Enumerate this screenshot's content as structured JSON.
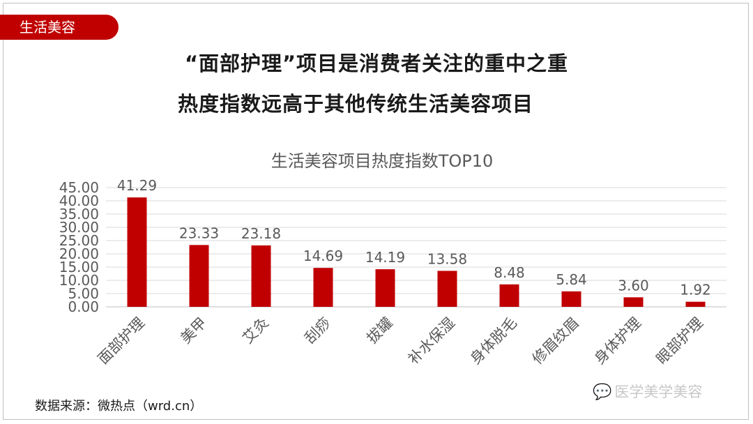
{
  "tag": {
    "label": "生活美容"
  },
  "headline": {
    "line1": "“面部护理”项目是消费者关注的重中之重",
    "line2": "热度指数远高于其他传统生活美容项目"
  },
  "source": {
    "text": "数据来源：微热点（wrd.cn）"
  },
  "watermark": {
    "text": "医学美学美容",
    "icon": "wechat-icon"
  },
  "colors": {
    "bar": "#c00000",
    "tag": "#c00000",
    "grid": "#d9d9d9",
    "text": "#595959"
  },
  "chart_data": {
    "type": "bar",
    "title": "生活美容项目热度指数TOP10",
    "categories": [
      "面部护理",
      "美甲",
      "艾灸",
      "刮痧",
      "拔罐",
      "补水保湿",
      "身体脱毛",
      "修眉纹眉",
      "身体护理",
      "眼部护理"
    ],
    "values": [
      41.29,
      23.33,
      23.18,
      14.69,
      14.19,
      13.58,
      8.48,
      5.84,
      3.6,
      1.92
    ],
    "data_labels": [
      "41.29",
      "23.33",
      "23.18",
      "14.69",
      "14.19",
      "13.58",
      "8.48",
      "5.84",
      "3.60",
      "1.92"
    ],
    "y_ticks": [
      "0.00",
      "5.00",
      "10.00",
      "15.00",
      "20.00",
      "25.00",
      "30.00",
      "35.00",
      "40.00",
      "45.00"
    ],
    "ylim": [
      0,
      45
    ],
    "grid": true,
    "legend": "none"
  }
}
